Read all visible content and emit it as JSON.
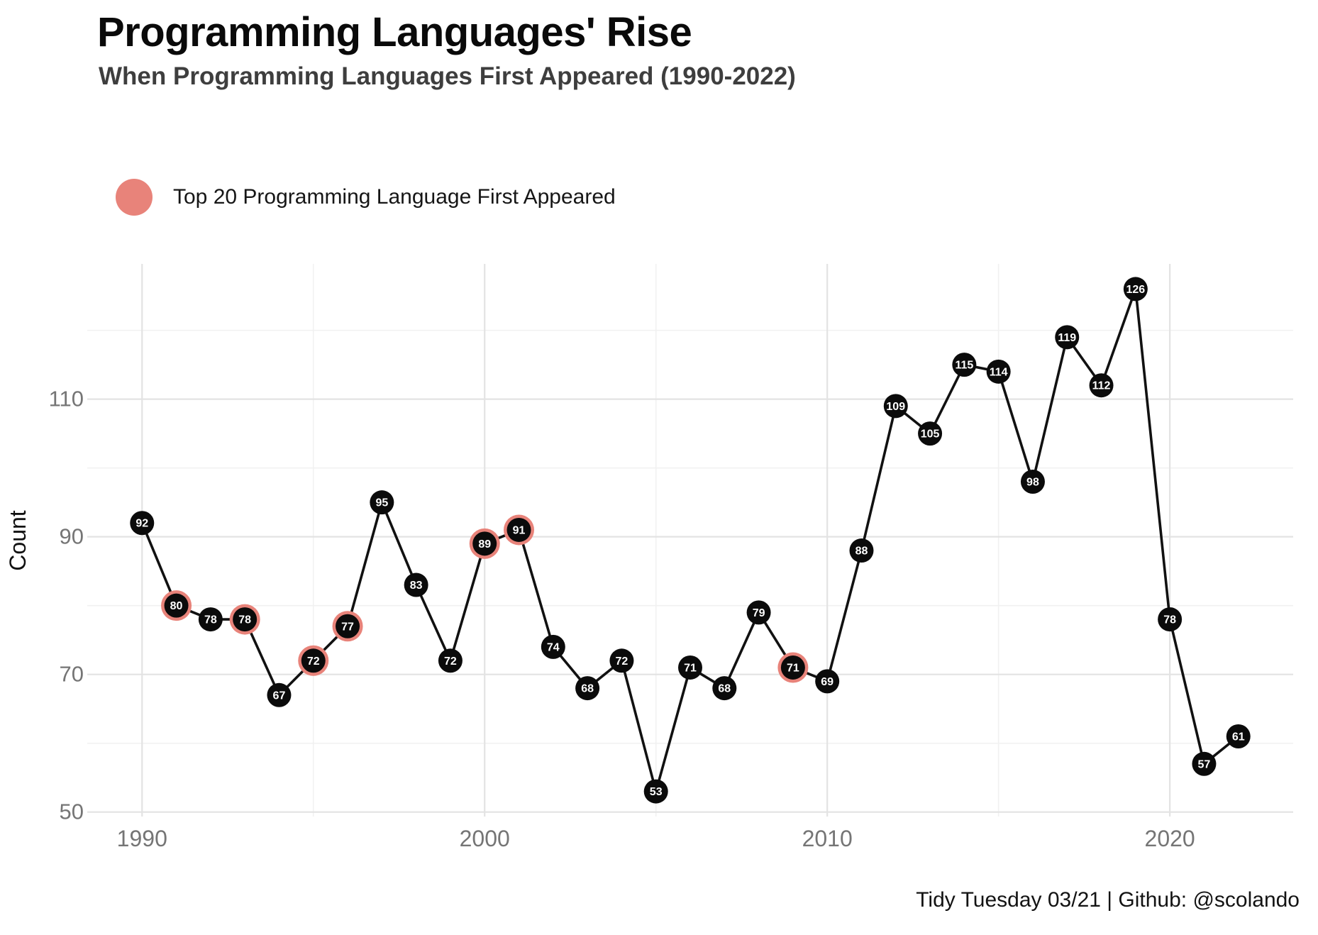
{
  "title": "Programming Languages' Rise",
  "subtitle": "When Programming Languages First Appeared (1990-2022)",
  "legend": {
    "label": "Top 20 Programming Language First Appeared",
    "marker_color": "#E8837A"
  },
  "caption": "Tidy Tuesday 03/21 | Github: @scolando",
  "chart_data": {
    "type": "line",
    "title": "Programming Languages' Rise",
    "subtitle": "When Programming Languages First Appeared (1990-2022)",
    "x": [
      1990,
      1991,
      1992,
      1993,
      1994,
      1995,
      1996,
      1997,
      1998,
      1999,
      2000,
      2001,
      2002,
      2003,
      2004,
      2005,
      2006,
      2007,
      2008,
      2009,
      2010,
      2011,
      2012,
      2013,
      2014,
      2015,
      2016,
      2017,
      2018,
      2019,
      2020,
      2021,
      2022
    ],
    "values": [
      92,
      80,
      78,
      78,
      67,
      72,
      77,
      95,
      83,
      72,
      89,
      91,
      74,
      68,
      72,
      53,
      71,
      68,
      79,
      71,
      69,
      88,
      109,
      105,
      115,
      114,
      98,
      119,
      112,
      126,
      78,
      57,
      61
    ],
    "highlighted_years": [
      1991,
      1993,
      1995,
      1996,
      2000,
      2001,
      2009
    ],
    "highlight_legend": "Top 20 Programming Language First Appeared",
    "xlabel": "",
    "ylabel": "Count",
    "x_ticks": [
      1990,
      2000,
      2010,
      2020
    ],
    "x_minor_ticks": [
      1995,
      2005,
      2015
    ],
    "y_ticks": [
      50,
      70,
      90,
      110
    ],
    "y_minor_ticks": [
      60,
      80,
      100,
      120
    ],
    "xlim": [
      1988.4,
      2023.6
    ],
    "ylim": [
      49.35,
      129.65
    ],
    "grid": "on",
    "legend_position": "top-left",
    "point_labels": "values",
    "colors": {
      "point_fill": "#0b0b0b",
      "point_label": "#ffffff",
      "line": "#111111",
      "highlight_ring": "#E8837A",
      "grid_major": "#e3e3e3",
      "grid_minor": "#f1f1f1",
      "tick_label": "#757575",
      "axis_title": "#111111"
    }
  }
}
